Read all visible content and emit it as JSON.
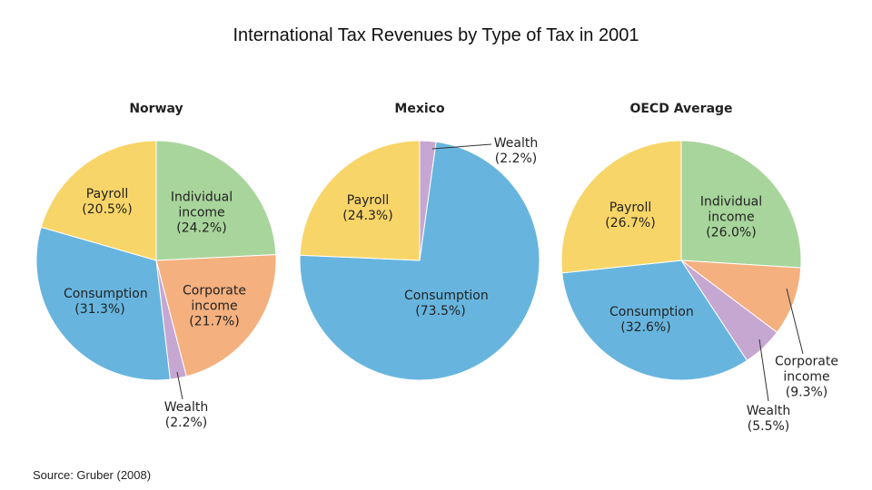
{
  "title": "International Tax Revenues by Type of Tax in 2001",
  "source": "Source: Gruber (2008)",
  "chart_data": [
    {
      "type": "pie",
      "title": "Norway",
      "categories": [
        "Individual income",
        "Corporate income",
        "Wealth",
        "Consumption",
        "Payroll"
      ],
      "values": [
        24.2,
        21.7,
        2.2,
        31.3,
        20.5
      ],
      "value_labels": [
        "(24.2%)",
        "(21.7%)",
        "(2.2%)",
        "(31.3%)",
        "(20.5%)"
      ],
      "colors": [
        "#a8d59b",
        "#f4b07f",
        "#c6a7d2",
        "#67b5de",
        "#f8d568"
      ]
    },
    {
      "type": "pie",
      "title": "Mexico",
      "categories": [
        "Wealth",
        "Consumption",
        "Payroll"
      ],
      "values": [
        2.2,
        73.5,
        24.3
      ],
      "value_labels": [
        "(2.2%)",
        "(73.5%)",
        "(24.3%)"
      ],
      "colors": [
        "#c6a7d2",
        "#67b5de",
        "#f8d568"
      ]
    },
    {
      "type": "pie",
      "title": "OECD Average",
      "categories": [
        "Individual income",
        "Corporate income",
        "Wealth",
        "Consumption",
        "Payroll"
      ],
      "values": [
        26.0,
        9.3,
        5.5,
        32.6,
        26.7
      ],
      "value_labels": [
        "(26.0%)",
        "(9.3%)",
        "(5.5%)",
        "(32.6%)",
        "(26.7%)"
      ],
      "colors": [
        "#a8d59b",
        "#f4b07f",
        "#c6a7d2",
        "#67b5de",
        "#f8d568"
      ]
    }
  ]
}
